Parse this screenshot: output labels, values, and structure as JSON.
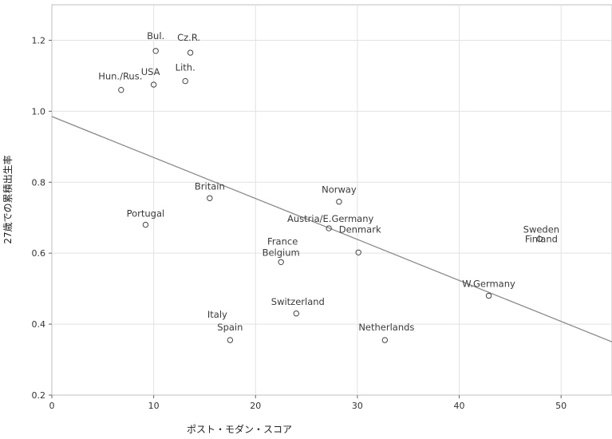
{
  "chart_data": {
    "type": "scatter",
    "xlabel": "ポスト・モダン・スコア",
    "ylabel": "27歳での累積出生率",
    "xlim": [
      0,
      55
    ],
    "ylim": [
      0.2,
      1.3
    ],
    "xticks": [
      0,
      10,
      20,
      30,
      40,
      50
    ],
    "yticks": [
      0.2,
      0.4,
      0.6,
      0.8,
      1.0,
      1.2
    ],
    "xtick_labels": [
      "0",
      "10",
      "20",
      "30",
      "40",
      "50"
    ],
    "ytick_labels": [
      "0.2",
      "0.4",
      "0.6",
      "0.8",
      "1.0",
      "1.2"
    ],
    "grid": true,
    "points": [
      {
        "label": "Bul.",
        "x": 10.2,
        "y": 1.17
      },
      {
        "label": "Cz.R.",
        "x": 13.6,
        "y": 1.165
      },
      {
        "label": "USA",
        "x": 10.0,
        "y": 1.075
      },
      {
        "label": "Lith.",
        "x": 13.1,
        "y": 1.085
      },
      {
        "label": "Hun./Rus.",
        "x": 6.8,
        "y": 1.06
      },
      {
        "label": "Britain",
        "x": 15.5,
        "y": 0.755
      },
      {
        "label": "Norway",
        "x": 28.2,
        "y": 0.745
      },
      {
        "label": "Portugal",
        "x": 9.2,
        "y": 0.68
      },
      {
        "label": "Austria/E.Germany",
        "x": 27.2,
        "y": 0.67
      },
      {
        "label": "Sweden",
        "x": 47.9,
        "y": 0.64
      },
      {
        "label": "Finland",
        "x": 47.9,
        "y": 0.64
      },
      {
        "label": "Denmark",
        "x": 30.1,
        "y": 0.602
      },
      {
        "label": "France",
        "x": 22.5,
        "y": 0.575
      },
      {
        "label": "Belgium",
        "x": 22.5,
        "y": 0.575
      },
      {
        "label": "W.Germany",
        "x": 42.9,
        "y": 0.48
      },
      {
        "label": "Switzerland",
        "x": 24.0,
        "y": 0.43
      },
      {
        "label": "Italy",
        "x": 17.5,
        "y": 0.355
      },
      {
        "label": "Spain",
        "x": 17.5,
        "y": 0.355
      },
      {
        "label": "Netherlands",
        "x": 32.7,
        "y": 0.355
      }
    ],
    "trendline": {
      "x": [
        0,
        55
      ],
      "y": [
        0.985,
        0.35
      ]
    }
  }
}
